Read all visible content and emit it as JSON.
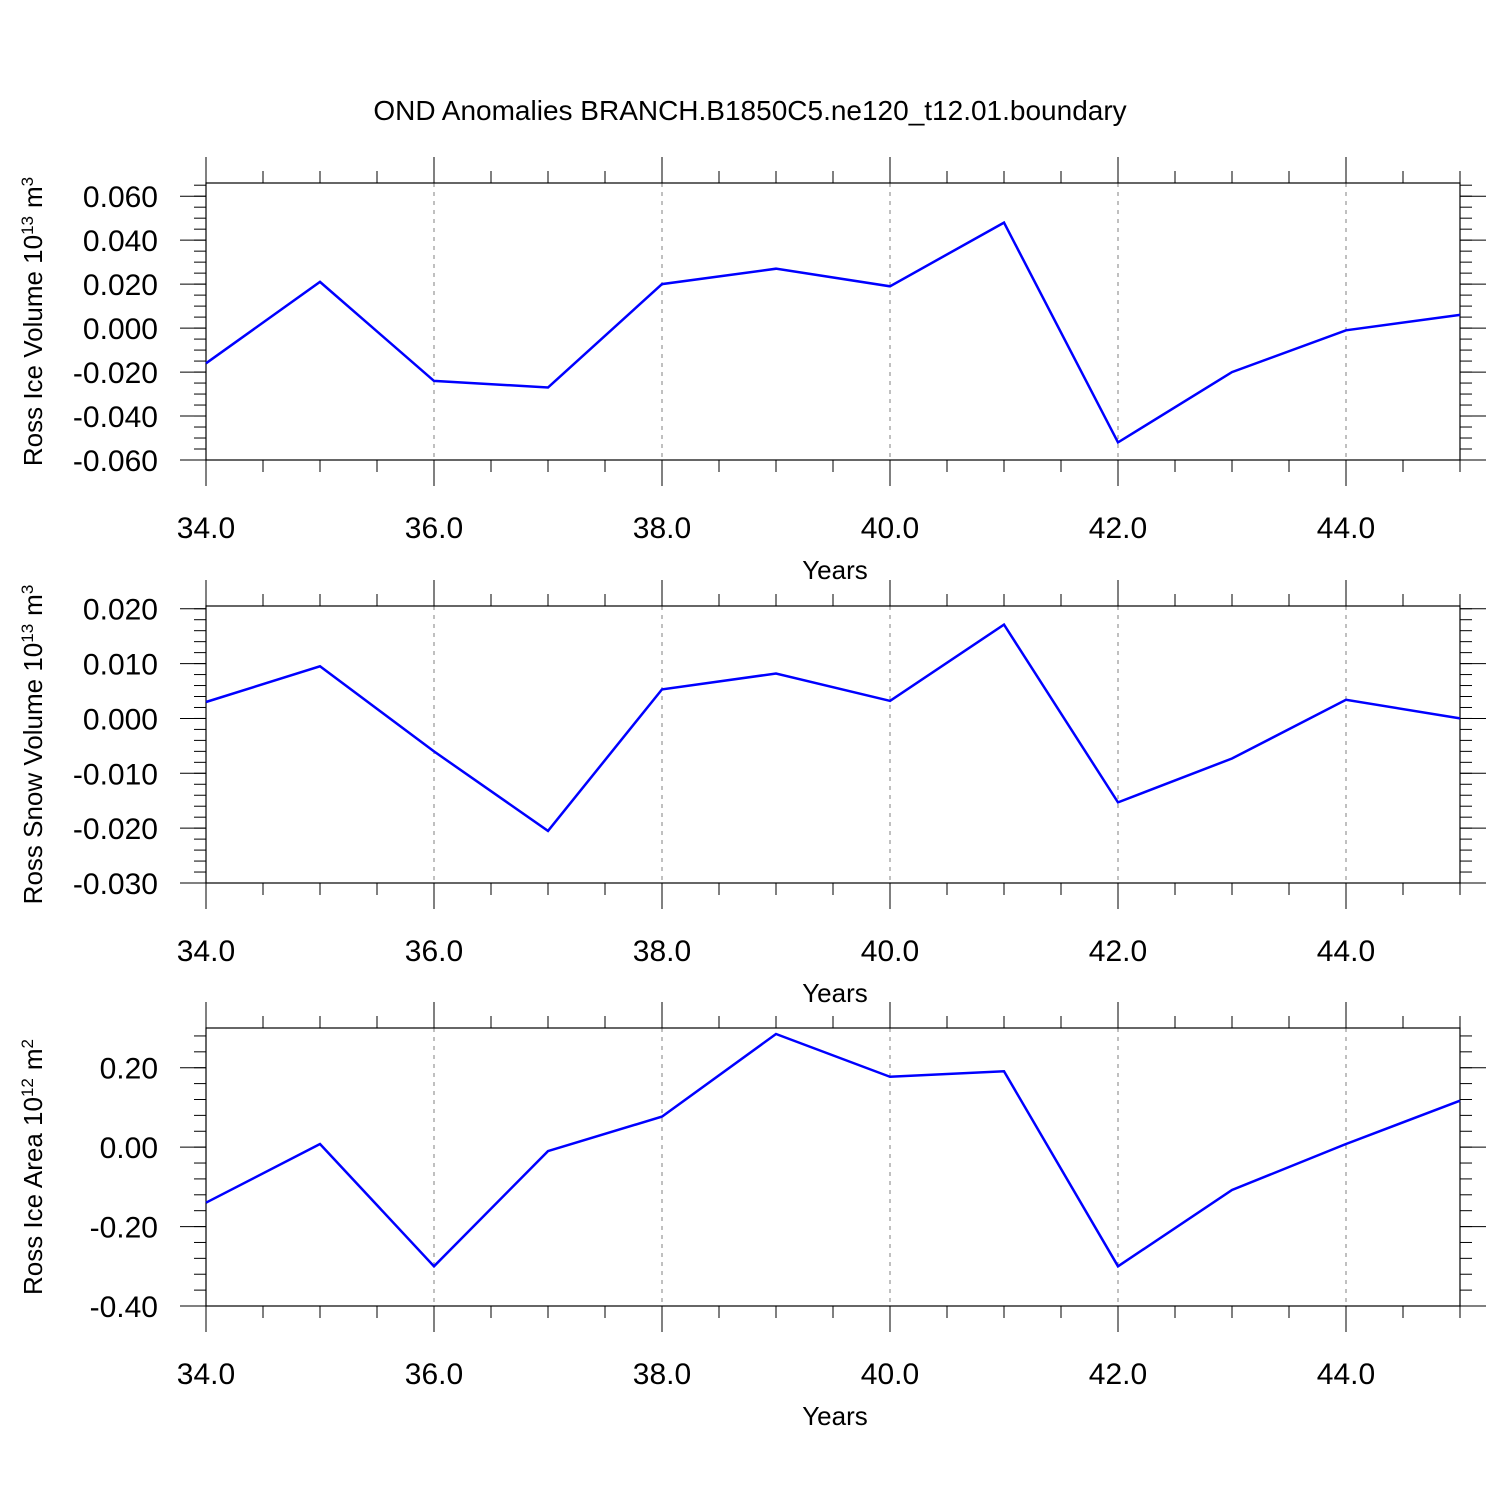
{
  "title": "OND Anomalies BRANCH.B1850C5.ne120_t12.01.boundary",
  "colors": {
    "series": "#0000ff",
    "axis": "#000000",
    "grid": "#808080"
  },
  "chart_data": [
    {
      "type": "line",
      "ylabel": "Ross Ice Volume 10",
      "ylabel_exp": "13",
      "ylabel_unit": "m",
      "ylabel_unit_exp": "3",
      "xlabel": "Years",
      "xlim": [
        34,
        45
      ],
      "ylim": [
        -0.06,
        0.066
      ],
      "x_ticks": [
        34,
        36,
        38,
        40,
        42,
        44
      ],
      "x_tick_labels": [
        "34.0",
        "36.0",
        "38.0",
        "40.0",
        "42.0",
        "44.0"
      ],
      "y_ticks": [
        -0.06,
        -0.04,
        -0.02,
        0.0,
        0.02,
        0.04,
        0.06
      ],
      "y_tick_labels": [
        "-0.060",
        "-0.040",
        "-0.020",
        "0.000",
        "0.020",
        "0.040",
        "0.060"
      ],
      "y_minor_step": 0.005,
      "grid": "vertical dashed at major x ticks",
      "x": [
        34,
        35,
        36,
        37,
        38,
        39,
        40,
        41,
        42,
        43,
        44,
        45
      ],
      "values": [
        -0.016,
        0.021,
        -0.024,
        -0.027,
        0.02,
        0.027,
        0.019,
        0.048,
        -0.052,
        -0.02,
        -0.001,
        0.006
      ]
    },
    {
      "type": "line",
      "ylabel": "Ross Snow Volume 10",
      "ylabel_exp": "13",
      "ylabel_unit": "m",
      "ylabel_unit_exp": "3",
      "xlabel": "Years",
      "xlim": [
        34,
        45
      ],
      "ylim": [
        -0.03,
        0.0205
      ],
      "x_ticks": [
        34,
        36,
        38,
        40,
        42,
        44
      ],
      "x_tick_labels": [
        "34.0",
        "36.0",
        "38.0",
        "40.0",
        "42.0",
        "44.0"
      ],
      "y_ticks": [
        -0.03,
        -0.02,
        -0.01,
        0.0,
        0.01,
        0.02
      ],
      "y_tick_labels": [
        "-0.030",
        "-0.020",
        "-0.010",
        "0.000",
        "0.010",
        "0.020"
      ],
      "y_minor_step": 0.002,
      "grid": "vertical dashed at major x ticks",
      "x": [
        34,
        35,
        36,
        37,
        38,
        39,
        40,
        41,
        42,
        43,
        44,
        45
      ],
      "values": [
        0.003,
        0.0095,
        -0.006,
        -0.0205,
        0.0053,
        0.0082,
        0.0032,
        0.0171,
        -0.0153,
        -0.0073,
        0.0034,
        0.0
      ]
    },
    {
      "type": "line",
      "ylabel": "Ross Ice Area 10",
      "ylabel_exp": "12",
      "ylabel_unit": "m",
      "ylabel_unit_exp": "2",
      "xlabel": "Years",
      "xlim": [
        34,
        45
      ],
      "ylim": [
        -0.4,
        0.3
      ],
      "x_ticks": [
        34,
        36,
        38,
        40,
        42,
        44
      ],
      "x_tick_labels": [
        "34.0",
        "36.0",
        "38.0",
        "40.0",
        "42.0",
        "44.0"
      ],
      "y_ticks": [
        -0.4,
        -0.2,
        0.0,
        0.2
      ],
      "y_tick_labels": [
        "-0.40",
        "-0.20",
        "0.00",
        "0.20"
      ],
      "y_minor_step": 0.04,
      "grid": "vertical dashed at major x ticks",
      "x": [
        34,
        35,
        36,
        37,
        38,
        39,
        40,
        41,
        42,
        43,
        44,
        45
      ],
      "values": [
        -0.14,
        0.008,
        -0.3,
        -0.01,
        0.077,
        0.285,
        0.177,
        0.191,
        -0.3,
        -0.108,
        0.008,
        0.117
      ]
    }
  ]
}
